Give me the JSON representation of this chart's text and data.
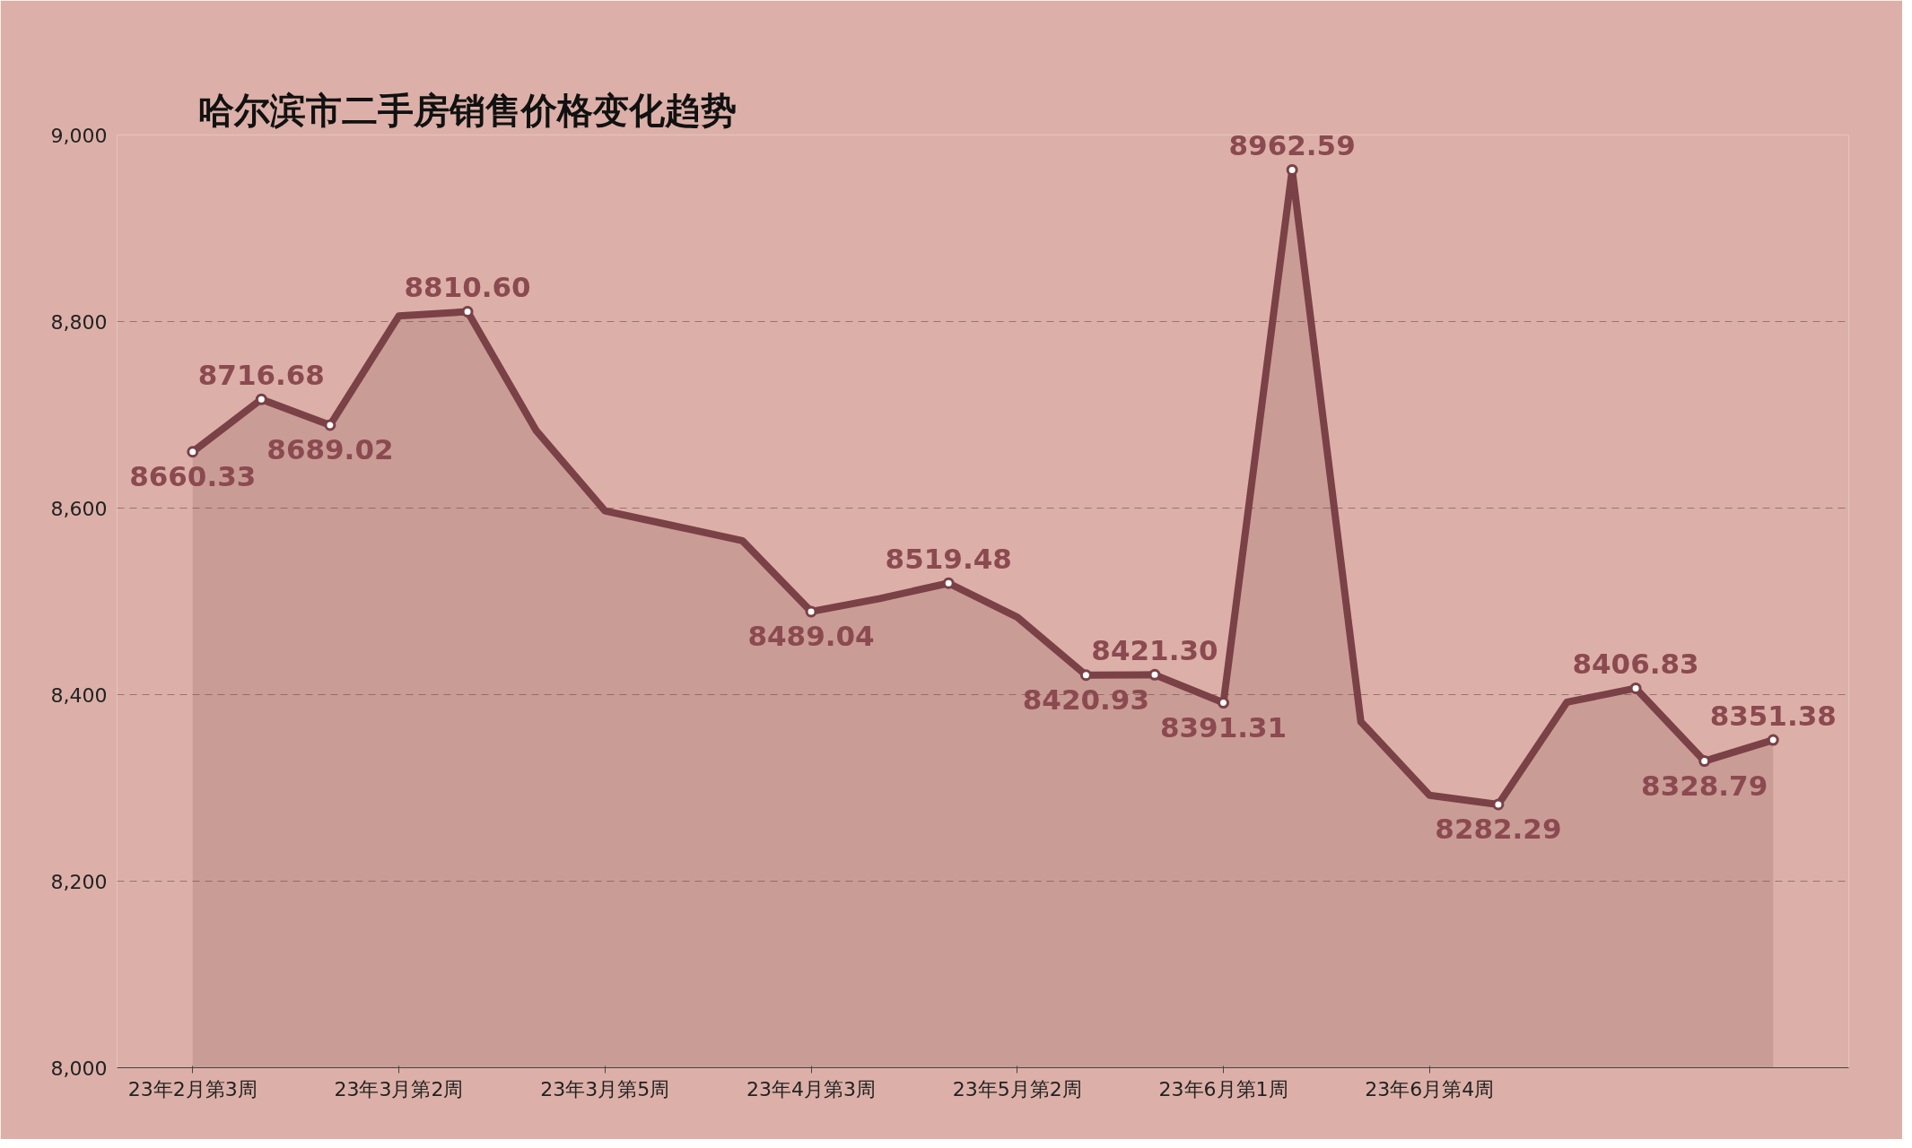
{
  "chart_data": {
    "type": "area",
    "title": "哈尔滨市二手房销售价格变化趋势",
    "categories": [
      "23年2月第3周",
      null,
      null,
      "23年3月第2周",
      null,
      null,
      "23年3月第5周",
      null,
      null,
      "23年4月第3周",
      null,
      null,
      "23年5月第2周",
      null,
      null,
      "23年6月第1周",
      null,
      null,
      "23年6月第4周",
      null,
      null,
      null,
      null,
      null
    ],
    "series": [
      {
        "color": "#7a4146",
        "values": [
          8660.33,
          8716.68,
          8689.02,
          8806,
          8810.6,
          8683,
          8597,
          8581,
          8565,
          8489.04,
          8503,
          8519.48,
          8483,
          8420.93,
          8421.3,
          8391.31,
          8962.59,
          8371,
          8292,
          8282.29,
          8392,
          8406.83,
          8328.79,
          8351.38
        ],
        "value_labels": [
          "8660.33",
          "8716.68",
          "8689.02",
          null,
          "8810.60",
          null,
          null,
          null,
          null,
          "8489.04",
          null,
          "8519.48",
          null,
          "8420.93",
          "8421.30",
          "8391.31",
          "8962.59",
          null,
          null,
          "8282.29",
          null,
          "8406.83",
          "8328.79",
          "8351.38"
        ]
      }
    ],
    "ylim": [
      8000,
      9000
    ],
    "yticks": [
      {
        "value": 8000,
        "label": "8,000"
      },
      {
        "value": 8200,
        "label": "8,200"
      },
      {
        "value": 8400,
        "label": "8,400"
      },
      {
        "value": 8600,
        "label": "8,600"
      },
      {
        "value": 8800,
        "label": "8,800"
      },
      {
        "value": 9000,
        "label": "9,000"
      }
    ],
    "grid": "y",
    "marker": "circle",
    "line_style": "solid"
  }
}
